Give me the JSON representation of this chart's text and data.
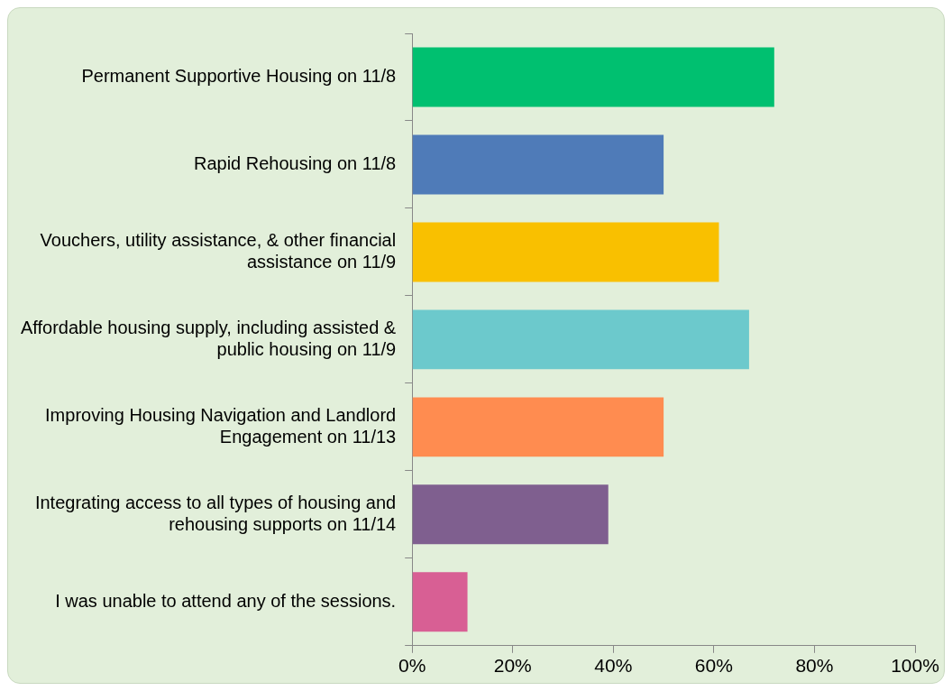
{
  "chart_data": {
    "type": "bar",
    "orientation": "horizontal",
    "categories": [
      "Permanent Supportive Housing on 11/8",
      "Rapid Rehousing on 11/8",
      "Vouchers, utility assistance, & other financial assistance on 11/9",
      "Affordable housing supply, including assisted & public housing on 11/9",
      "Improving Housing Navigation and Landlord Engagement on 11/13",
      "Integrating access to all types of housing and rehousing supports on 11/14",
      "I was unable to attend any of the sessions."
    ],
    "values": [
      0.72,
      0.5,
      0.61,
      0.67,
      0.5,
      0.39,
      0.11
    ],
    "colors": [
      "#00c070",
      "#4f7bb8",
      "#f9c000",
      "#6cc9cc",
      "#ff8c50",
      "#7f5f8f",
      "#d85f94"
    ],
    "xlim": [
      0,
      1
    ],
    "xticks": [
      {
        "value": 0,
        "label": "0%"
      },
      {
        "value": 0.2,
        "label": "20%"
      },
      {
        "value": 0.4,
        "label": "40%"
      },
      {
        "value": 0.6,
        "label": "60%"
      },
      {
        "value": 0.8,
        "label": "80%"
      },
      {
        "value": 1,
        "label": "100%"
      }
    ],
    "grid": false,
    "legend": false
  }
}
